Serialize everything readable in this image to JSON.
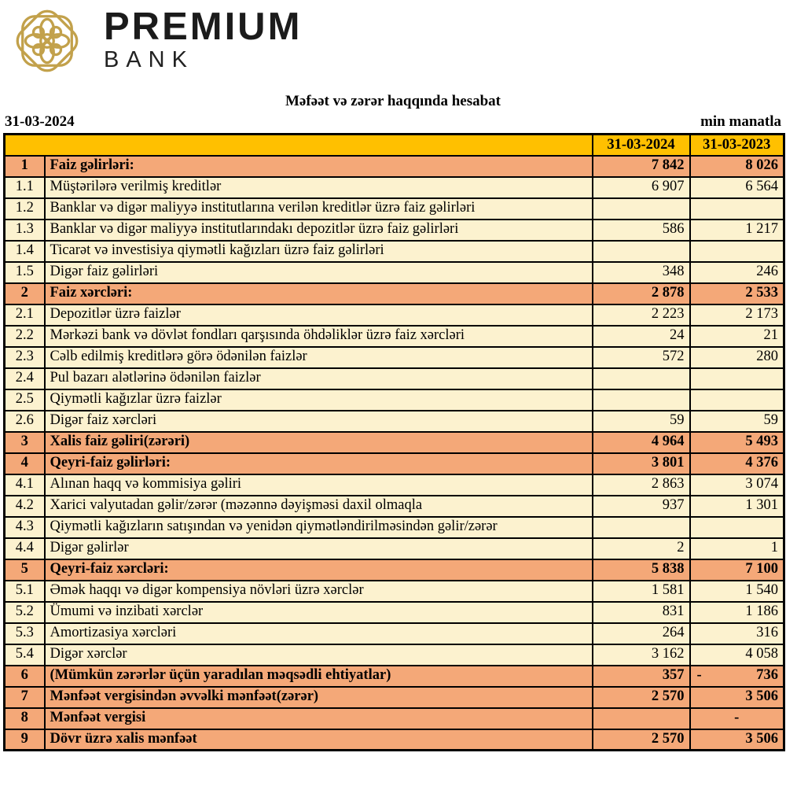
{
  "brand": {
    "name": "PREMIUM",
    "sub": "BANK",
    "emblem_icon": "premium-bank-knot-logo"
  },
  "report": {
    "title": "Məfəət və zərər haqqında hesabat",
    "date": "31-03-2024",
    "unit": "min manatla"
  },
  "colors": {
    "header_gold": "#FFC000",
    "section_orange": "#F4A878",
    "row_cream": "#FCF2CF",
    "logo_gold": "#C2A14B",
    "border_black": "#000000"
  },
  "table": {
    "columns": [
      "",
      "",
      "31-03-2024",
      "31-03-2023"
    ],
    "rows": [
      {
        "no": "1",
        "label": "Faiz gəlirləri:",
        "v2024": "7 842",
        "v2023": "8 026",
        "section": true
      },
      {
        "no": "1.1",
        "label": "Müştərilərə verilmiş kreditlər",
        "v2024": "6 907",
        "v2023": "6 564"
      },
      {
        "no": "1.2",
        "label": "Banklar və digər maliyyə institutlarına verilən kreditlər üzrə faiz gəlirləri",
        "v2024": "",
        "v2023": ""
      },
      {
        "no": "1.3",
        "label": "Banklar və digər maliyyə institutlarındakı depozitlər üzrə faiz gəlirləri",
        "v2024": "586",
        "v2023": "1 217"
      },
      {
        "no": "1.4",
        "label": "Ticarət və investisiya qiymətli kağızları üzrə faiz gəlirləri",
        "v2024": "",
        "v2023": ""
      },
      {
        "no": "1.5",
        "label": "Digər faiz gəlirləri",
        "v2024": "348",
        "v2023": "246"
      },
      {
        "no": "2",
        "label": "Faiz xərcləri:",
        "v2024": "2 878",
        "v2023": "2 533",
        "section": true
      },
      {
        "no": "2.1",
        "label": "Depozitlər üzrə faizlər",
        "v2024": "2 223",
        "v2023": "2 173"
      },
      {
        "no": "2.2",
        "label": "Mərkəzi bank və dövlət fondları qarşısında öhdəliklər üzrə faiz xərcləri",
        "v2024": "24",
        "v2023": "21"
      },
      {
        "no": "2.3",
        "label": "Cəlb edilmiş kreditlərə görə ödənilən faizlər",
        "v2024": "572",
        "v2023": "280"
      },
      {
        "no": "2.4",
        "label": "Pul bazarı alətlərinə ödənilən faizlər",
        "v2024": "",
        "v2023": ""
      },
      {
        "no": "2.5",
        "label": "Qiymətli kağızlar üzrə faizlər",
        "v2024": "",
        "v2023": ""
      },
      {
        "no": "2.6",
        "label": "Digər faiz xərcləri",
        "v2024": "59",
        "v2023": "59"
      },
      {
        "no": "3",
        "label": "Xalis faiz gəliri(zərəri)",
        "v2024": "4 964",
        "v2023": "5 493",
        "section": true
      },
      {
        "no": "4",
        "label": "Qeyri-faiz gəlirləri:",
        "v2024": "3 801",
        "v2023": "4 376",
        "section": true
      },
      {
        "no": "4.1",
        "label": "Alınan haqq və kommisiya gəliri",
        "v2024": "2 863",
        "v2023": "3 074"
      },
      {
        "no": "4.2",
        "label": "Xarici valyutadan gəlir/zərər (məzənnə dəyişməsi daxil olmaqla",
        "v2024": "937",
        "v2023": "1 301"
      },
      {
        "no": "4.3",
        "label": "Qiymətli kağızların satışından və yenidən qiymətləndirilməsindən gəlir/zərər",
        "v2024": "",
        "v2023": ""
      },
      {
        "no": "4.4",
        "label": "Digər gəlirlər",
        "v2024": "2",
        "v2023": "1"
      },
      {
        "no": "5",
        "label": "Qeyri-faiz xərcləri:",
        "v2024": "5 838",
        "v2023": "7 100",
        "section": true
      },
      {
        "no": "5.1",
        "label": "Əmək haqqı və digər kompensiya növləri üzrə xərclər",
        "v2024": "1 581",
        "v2023": "1 540"
      },
      {
        "no": "5.2",
        "label": "Ümumi və inzibati xərclər",
        "v2024": "831",
        "v2023": "1 186"
      },
      {
        "no": "5.3",
        "label": "Amortizasiya xərcləri",
        "v2024": "264",
        "v2023": "316"
      },
      {
        "no": "5.4",
        "label": "Digər xərclər",
        "v2024": "3 162",
        "v2023": "4 058"
      },
      {
        "no": "6",
        "label": "(Mümkün zərərlər üçün yaradılan məqsədli ehtiyatlar)",
        "v2024": "357",
        "v2023": "736",
        "v2023_dash_left": true,
        "section": true
      },
      {
        "no": "7",
        "label": "Mənfəət vergisindən əvvəlki mənfəət(zərər)",
        "v2024": "2 570",
        "v2023": "3 506",
        "section": true
      },
      {
        "no": "8",
        "label": "Mənfəət vergisi",
        "v2024": "",
        "v2023": "-",
        "v2023_center": true,
        "section": true
      },
      {
        "no": "9",
        "label": "Dövr üzrə xalis mənfəət",
        "v2024": "2 570",
        "v2023": "3 506",
        "section": true
      }
    ]
  }
}
